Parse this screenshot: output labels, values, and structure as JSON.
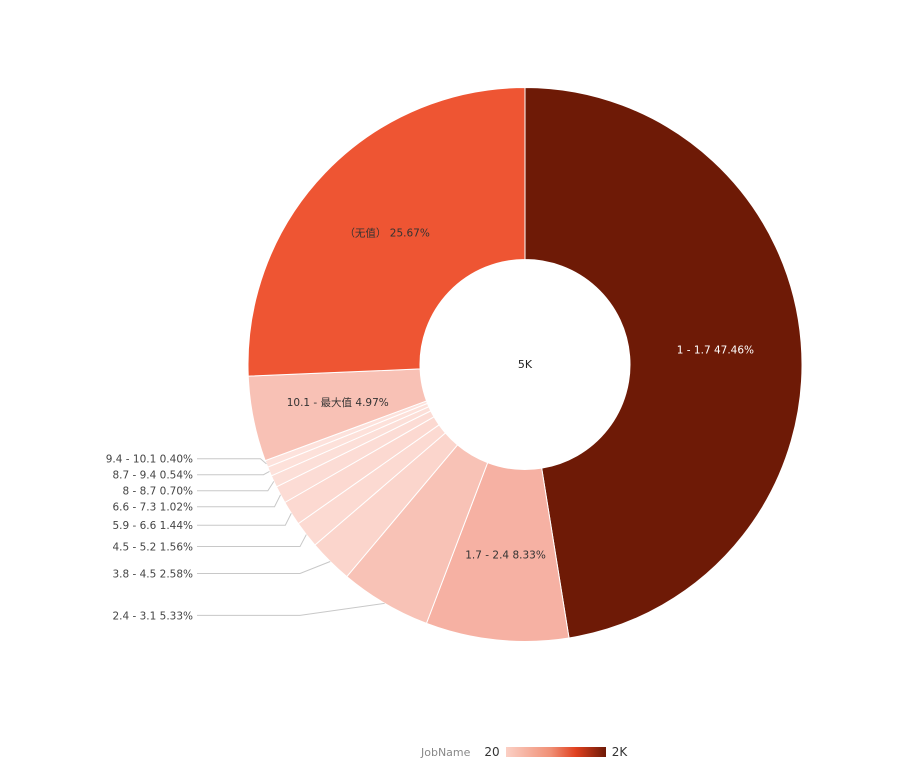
{
  "chart_data": {
    "type": "pie",
    "center_label": "5K",
    "slices": [
      {
        "label": "1 - 1.7",
        "percent": "47.46%",
        "value": 47.46,
        "color": "#6e1a06",
        "text_color": "#ffffff",
        "outside": false
      },
      {
        "label": "1.7 - 2.4",
        "percent": "8.33%",
        "value": 8.33,
        "color": "#f6b1a3",
        "text_color": "#333333",
        "outside": false
      },
      {
        "label": "2.4 - 3.1",
        "percent": "5.33%",
        "value": 5.33,
        "color": "#f8c2b6",
        "text_color": "#333333",
        "outside": true
      },
      {
        "label": "3.8 - 4.5",
        "percent": "2.58%",
        "value": 2.58,
        "color": "#fbd5cc",
        "text_color": "#333333",
        "outside": true
      },
      {
        "label": "4.5 - 5.2",
        "percent": "1.56%",
        "value": 1.56,
        "color": "#fcdad2",
        "text_color": "#333333",
        "outside": true
      },
      {
        "label": "5.9 - 6.6",
        "percent": "1.44%",
        "value": 1.44,
        "color": "#fcd9d1",
        "text_color": "#333333",
        "outside": true
      },
      {
        "label": "6.6 - 7.3",
        "percent": "1.02%",
        "value": 1.02,
        "color": "#fcdcd5",
        "text_color": "#333333",
        "outside": true
      },
      {
        "label": "8 - 8.7",
        "percent": "0.70%",
        "value": 0.7,
        "color": "#fcdfd8",
        "text_color": "#333333",
        "outside": true
      },
      {
        "label": "8.7 - 9.4",
        "percent": "0.54%",
        "value": 0.54,
        "color": "#fde1da",
        "text_color": "#333333",
        "outside": true
      },
      {
        "label": "9.4 - 10.1",
        "percent": "0.40%",
        "value": 0.4,
        "color": "#fde2dc",
        "text_color": "#333333",
        "outside": true
      },
      {
        "label": "10.1 - 最大值",
        "percent": "4.97%",
        "value": 4.97,
        "color": "#f8c1b5",
        "text_color": "#333333",
        "outside": false
      },
      {
        "label": "（无值）",
        "percent": "25.67%",
        "value": 25.67,
        "color": "#ee5533",
        "text_color": "#333333",
        "outside": false
      }
    ]
  },
  "legend": {
    "title": "JobName",
    "min": "20",
    "max": "2K",
    "gradient": [
      "#fbd0c5",
      "#f08f75",
      "#e0401f",
      "#6d1a07"
    ]
  }
}
